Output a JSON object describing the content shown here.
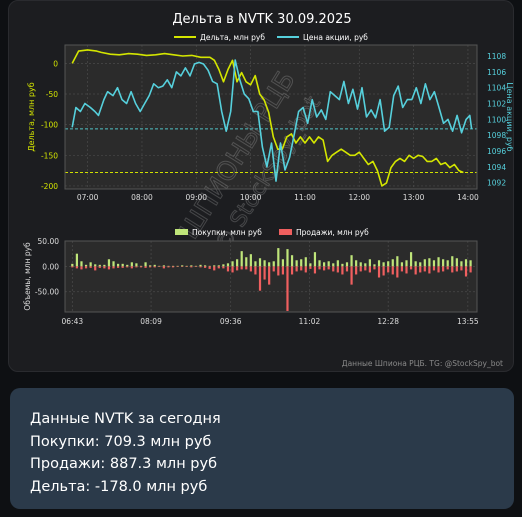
{
  "chart_data": [
    {
      "type": "line",
      "title": "Дельта в NVTK 30.09.2025",
      "ylabel": "Дельта, млн руб",
      "y2label": "Цена акции, руб",
      "ylim": [
        -205,
        30
      ],
      "y2lim": [
        1091.2,
        1109.4
      ],
      "yticks": [
        "0",
        "-50",
        "-100",
        "-150",
        "-200"
      ],
      "y2ticks": [
        "1108",
        "1106",
        "1104",
        "1102",
        "1100",
        "1098",
        "1096",
        "1094",
        "1092"
      ],
      "xticks": [
        "07:00",
        "08:00",
        "09:00",
        "10:00",
        "11:00",
        "12:00",
        "13:00",
        "14:00"
      ],
      "xlim": [
        "06:35",
        "14:10"
      ],
      "legend_position": "top-center",
      "grid": true,
      "reference_lines": [
        {
          "axis": "y2",
          "value": 1098.8,
          "color": "#4fc3c6"
        },
        {
          "axis": "y",
          "value": -178,
          "color": "#cfe000"
        }
      ],
      "series": [
        {
          "name": "Дельта, млн руб",
          "color": "#d4e600",
          "axis": "y",
          "x": [
            "06:43",
            "06:50",
            "07:00",
            "07:10",
            "07:15",
            "07:25",
            "07:35",
            "07:45",
            "07:55",
            "08:05",
            "08:15",
            "08:25",
            "08:35",
            "08:45",
            "08:55",
            "09:05",
            "09:10",
            "09:15",
            "09:20",
            "09:25",
            "09:30",
            "09:35",
            "09:40",
            "09:45",
            "09:50",
            "09:55",
            "10:00",
            "10:05",
            "10:10",
            "10:15",
            "10:20",
            "10:25",
            "10:30",
            "10:35",
            "10:40",
            "10:45",
            "10:50",
            "10:55",
            "11:00",
            "11:05",
            "11:10",
            "11:15",
            "11:20",
            "11:25",
            "11:30",
            "11:35",
            "11:40",
            "11:45",
            "11:50",
            "11:55",
            "12:00",
            "12:05",
            "12:10",
            "12:15",
            "12:20",
            "12:25",
            "12:30",
            "12:35",
            "12:40",
            "12:45",
            "12:50",
            "12:55",
            "13:00",
            "13:05",
            "13:10",
            "13:15",
            "13:20",
            "13:25",
            "13:30",
            "13:35",
            "13:40",
            "13:45",
            "13:50",
            "13:55"
          ],
          "values": [
            0,
            20,
            22,
            20,
            18,
            15,
            14,
            16,
            15,
            13,
            14,
            16,
            14,
            12,
            13,
            10,
            10,
            10,
            5,
            -10,
            -30,
            -10,
            5,
            -30,
            -15,
            -30,
            -35,
            -20,
            -50,
            -60,
            -80,
            -120,
            -140,
            -140,
            -120,
            -115,
            -130,
            -120,
            -130,
            -120,
            -130,
            -120,
            -125,
            -160,
            -150,
            -145,
            -140,
            -145,
            -150,
            -150,
            -145,
            -155,
            -165,
            -160,
            -175,
            -200,
            -195,
            -170,
            -160,
            -155,
            -160,
            -150,
            -155,
            -150,
            -152,
            -160,
            -160,
            -155,
            -165,
            -162,
            -170,
            -165,
            -175,
            -178
          ]
        },
        {
          "name": "Цена акции, руб",
          "color": "#56d0dc",
          "axis": "y2",
          "x": [
            "06:43",
            "06:47",
            "06:52",
            "06:57",
            "07:03",
            "07:08",
            "07:12",
            "07:18",
            "07:22",
            "07:28",
            "07:33",
            "07:38",
            "07:43",
            "07:48",
            "07:53",
            "07:58",
            "08:03",
            "08:08",
            "08:13",
            "08:18",
            "08:23",
            "08:28",
            "08:33",
            "08:38",
            "08:43",
            "08:48",
            "08:53",
            "08:58",
            "09:03",
            "09:08",
            "09:13",
            "09:18",
            "09:23",
            "09:28",
            "09:33",
            "09:38",
            "09:43",
            "09:48",
            "09:53",
            "09:58",
            "10:03",
            "10:08",
            "10:13",
            "10:18",
            "10:23",
            "10:28",
            "10:33",
            "10:38",
            "10:43",
            "10:48",
            "10:53",
            "10:58",
            "11:03",
            "11:08",
            "11:13",
            "11:18",
            "11:23",
            "11:28",
            "11:33",
            "11:38",
            "11:43",
            "11:48",
            "11:53",
            "11:58",
            "12:03",
            "12:08",
            "12:13",
            "12:18",
            "12:23",
            "12:28",
            "12:33",
            "12:38",
            "12:43",
            "12:48",
            "12:53",
            "12:58",
            "13:03",
            "13:08",
            "13:13",
            "13:18",
            "13:23",
            "13:28",
            "13:33",
            "13:38",
            "13:43",
            "13:48",
            "13:53",
            "13:58",
            "14:02",
            "14:04"
          ],
          "values": [
            1099,
            1101.5,
            1101,
            1102,
            1101.5,
            1101,
            1100.5,
            1102.5,
            1103.5,
            1103,
            1104,
            1102.5,
            1102,
            1103.5,
            1102,
            1101,
            1102,
            1103,
            1104.5,
            1104,
            1104.2,
            1105,
            1104,
            1106,
            1105.5,
            1106.5,
            1105.5,
            1107,
            1107.2,
            1107,
            1106.2,
            1104.8,
            1104.5,
            1101,
            1098.5,
            1101,
            1107.5,
            1105,
            1103.2,
            1102.6,
            1101,
            1101,
            1096.5,
            1094,
            1097,
            1092.2,
            1097,
            1093.6,
            1095.2,
            1098,
            1101,
            1101.5,
            1099.5,
            1102.5,
            1100.3,
            1101.2,
            1100,
            1103.5,
            1103,
            1102.5,
            1104.8,
            1102,
            1103.8,
            1101.3,
            1104,
            1100.3,
            1101.2,
            1100.2,
            1102.5,
            1098.5,
            1099,
            1103,
            1104.2,
            1101.5,
            1102.5,
            1102.5,
            1104,
            1102,
            1104.5,
            1102.5,
            1103.5,
            1101.5,
            1099.5,
            1100,
            1098.5,
            1100.5,
            1098.3,
            1100,
            1100.5,
            1098.8
          ]
        }
      ]
    },
    {
      "type": "bar",
      "ylabel": "Объемы, млн руб",
      "ylim": [
        -90,
        50
      ],
      "yticks": [
        "50.00",
        "0.00",
        "-50.00"
      ],
      "xticks": [
        "06:43",
        "08:09",
        "09:36",
        "11:02",
        "12:28",
        "13:55"
      ],
      "xlim": [
        "06:35",
        "14:05"
      ],
      "legend_position": "top-center",
      "grid": true,
      "categories": [
        "06:43",
        "06:48",
        "06:53",
        "06:58",
        "07:03",
        "07:08",
        "07:13",
        "07:18",
        "07:23",
        "07:28",
        "07:33",
        "07:38",
        "07:43",
        "07:48",
        "07:53",
        "07:58",
        "08:03",
        "08:08",
        "08:13",
        "08:18",
        "08:23",
        "08:28",
        "08:33",
        "08:38",
        "08:43",
        "08:48",
        "08:53",
        "08:58",
        "09:03",
        "09:08",
        "09:13",
        "09:18",
        "09:23",
        "09:28",
        "09:33",
        "09:38",
        "09:43",
        "09:48",
        "09:53",
        "09:58",
        "10:03",
        "10:08",
        "10:13",
        "10:18",
        "10:23",
        "10:28",
        "10:33",
        "10:38",
        "10:43",
        "10:48",
        "10:53",
        "10:58",
        "11:03",
        "11:08",
        "11:13",
        "11:18",
        "11:23",
        "11:28",
        "11:33",
        "11:38",
        "11:43",
        "11:48",
        "11:53",
        "11:58",
        "12:03",
        "12:08",
        "12:13",
        "12:18",
        "12:23",
        "12:28",
        "12:33",
        "12:38",
        "12:43",
        "12:48",
        "12:53",
        "12:58",
        "13:03",
        "13:08",
        "13:13",
        "13:18",
        "13:23",
        "13:28",
        "13:33",
        "13:38",
        "13:43",
        "13:48",
        "13:53",
        "13:58"
      ],
      "series": [
        {
          "name": "Покупки, млн руб",
          "color": "#bfe57a",
          "values": [
            5,
            25,
            10,
            3,
            8,
            4,
            3,
            3,
            14,
            10,
            5,
            5,
            3,
            8,
            6,
            1,
            8,
            2,
            3,
            1,
            2,
            1,
            1,
            1,
            2,
            1,
            2,
            1,
            3,
            2,
            1,
            2,
            2,
            4,
            6,
            10,
            14,
            30,
            18,
            24,
            10,
            16,
            12,
            8,
            10,
            36,
            14,
            34,
            22,
            12,
            14,
            18,
            6,
            28,
            12,
            8,
            10,
            6,
            12,
            5,
            8,
            22,
            12,
            8,
            6,
            14,
            4,
            12,
            8,
            10,
            14,
            20,
            8,
            12,
            28,
            10,
            8,
            14,
            16,
            12,
            18,
            14,
            12,
            20,
            16,
            10,
            14,
            12
          ]
        },
        {
          "name": "Продажи, млн руб",
          "color": "#ef5f5f",
          "values": [
            -2,
            -4,
            -6,
            -4,
            -3,
            -8,
            -3,
            -4,
            -6,
            -4,
            -3,
            -3,
            -2,
            -4,
            -2,
            -2,
            -3,
            -2,
            -2,
            -1,
            -4,
            -2,
            -2,
            -1,
            -1,
            -1,
            -2,
            -1,
            -2,
            -3,
            -5,
            -8,
            -4,
            -4,
            -10,
            -12,
            -8,
            -6,
            -6,
            -10,
            -16,
            -48,
            -26,
            -36,
            -10,
            -18,
            -16,
            -88,
            -16,
            -10,
            -8,
            -12,
            -5,
            -14,
            -6,
            -8,
            -6,
            -10,
            -12,
            -16,
            -10,
            -36,
            -16,
            -10,
            -8,
            -12,
            -6,
            -22,
            -18,
            -12,
            -16,
            -22,
            -10,
            -14,
            -6,
            -16,
            -12,
            -10,
            -14,
            -8,
            -12,
            -10,
            -6,
            -12,
            -10,
            -8,
            -20,
            -12
          ]
        }
      ]
    }
  ],
  "chart_card": {
    "watermark_text": "ШПИОНЫ РЦБ",
    "watermark_sub": "© StockSpy_bot",
    "footer_text": "Данные Шпиона РЦБ. TG: @StockSpy_bot"
  },
  "summary": {
    "title": "Данные NVTK за сегодня",
    "buys": "Покупки: 709.3 млн руб",
    "sells": "Продажи: 887.3 млн руб",
    "delta": "Дельта: -178.0 млн руб"
  },
  "colors": {
    "page_background": "#0e1013",
    "card_background": "#1c1d20",
    "plot_background": "#2b2b2b",
    "summary_background": "#2b3a4a",
    "delta_line": "#d4e600",
    "price_line": "#56d0dc",
    "buys_bar": "#bfe57a",
    "sells_bar": "#ef5f5f"
  }
}
